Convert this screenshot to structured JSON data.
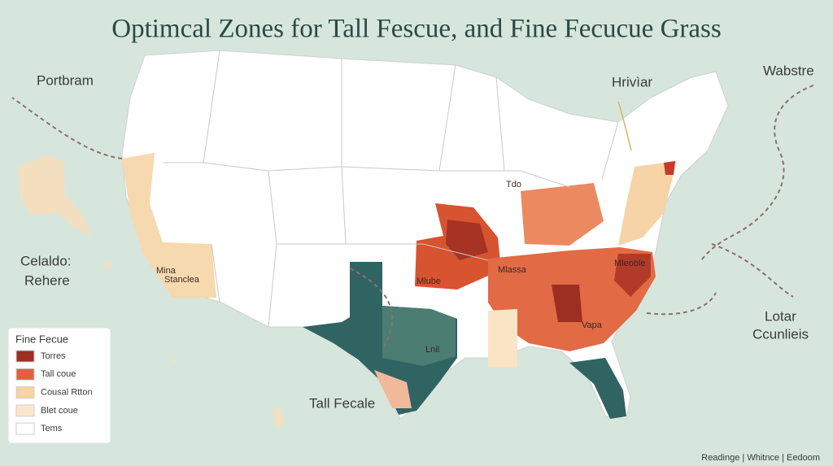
{
  "title": "Optimcal Zones for Tall Fescue, and Fine Fecucue Grass",
  "labels": [
    "Portbram",
    "Hrivìar",
    "Wabstre",
    "Celaldo:",
    "Rehere",
    "Lotar",
    "Ccunlieis",
    "Tall Fecale"
  ],
  "regions": [
    "Mina",
    "Stanclea",
    "Mlube",
    "Mlassa",
    "Mleoble",
    "Vapa",
    "Lnil",
    "Tdo"
  ],
  "legend": {
    "title": "Fine Fecue",
    "items": [
      {
        "label": "Torres",
        "color": "#9c2f22"
      },
      {
        "label": "Tall coue",
        "color": "#e2603c"
      },
      {
        "label": "Cousal Rtton",
        "color": "#f6d3a0"
      },
      {
        "label": "Blet coue",
        "color": "#fbe6cc"
      },
      {
        "label": "Tems",
        "color": "#ffffff"
      }
    ]
  },
  "footer": "Readinge | Whitnce | Eedoom"
}
